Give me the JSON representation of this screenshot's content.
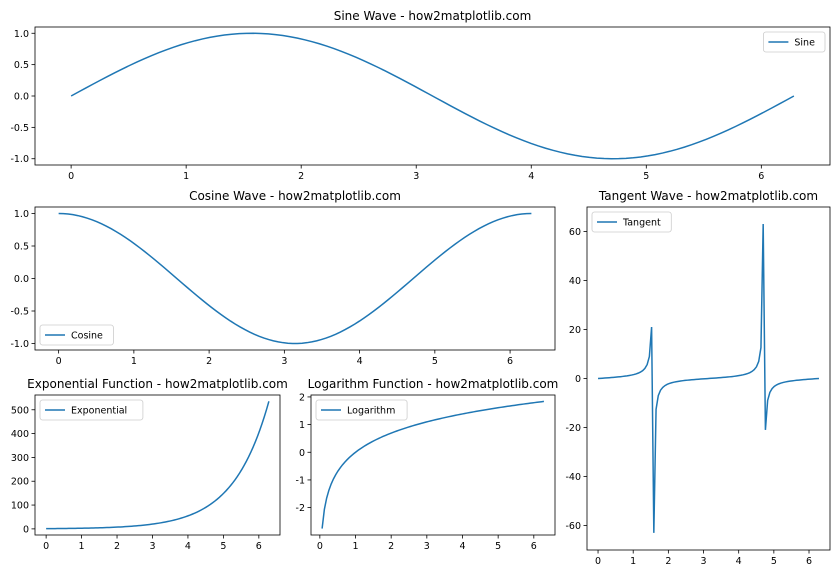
{
  "figure": {
    "line_color": "#1f77b4"
  },
  "chart_data": [
    {
      "id": "sine",
      "type": "line",
      "title": "Sine Wave - how2matplotlib.com",
      "series": [
        {
          "name": "Sine",
          "function": "sin",
          "x_start": 0,
          "x_stop": 6.2832,
          "num": 100
        }
      ],
      "xlim": [
        -0.314,
        6.597
      ],
      "ylim": [
        -1.1,
        1.1
      ],
      "xticks": [
        0,
        1,
        2,
        3,
        4,
        5,
        6
      ],
      "xtick_labels": [
        "0",
        "1",
        "2",
        "3",
        "4",
        "5",
        "6"
      ],
      "yticks": [
        -1,
        -0.5,
        0,
        0.5,
        1
      ],
      "ytick_labels": [
        "-1.0",
        "-0.5",
        "0.0",
        "0.5",
        "1.0"
      ],
      "legend": "upper-right",
      "grid": false
    },
    {
      "id": "cosine",
      "type": "line",
      "title": "Cosine Wave - how2matplotlib.com",
      "series": [
        {
          "name": "Cosine",
          "function": "cos",
          "x_start": 0,
          "x_stop": 6.2832,
          "num": 100
        }
      ],
      "xlim": [
        -0.314,
        6.597
      ],
      "ylim": [
        -1.1,
        1.1
      ],
      "xticks": [
        0,
        1,
        2,
        3,
        4,
        5,
        6
      ],
      "xtick_labels": [
        "0",
        "1",
        "2",
        "3",
        "4",
        "5",
        "6"
      ],
      "yticks": [
        -1,
        -0.5,
        0,
        0.5,
        1
      ],
      "ytick_labels": [
        "-1.0",
        "-0.5",
        "0.0",
        "0.5",
        "1.0"
      ],
      "legend": "lower-left",
      "grid": false
    },
    {
      "id": "tangent",
      "type": "line",
      "title": "Tangent Wave - how2matplotlib.com",
      "series": [
        {
          "name": "Tangent",
          "function": "tan",
          "x_start": 0,
          "x_stop": 6.2832,
          "num": 100,
          "peaks": [
            21.0,
            -63.0,
            63.0,
            -21.0
          ]
        }
      ],
      "xlim": [
        -0.314,
        6.597
      ],
      "ylim": [
        -70,
        70
      ],
      "xticks": [
        0,
        1,
        2,
        3,
        4,
        5,
        6
      ],
      "xtick_labels": [
        "0",
        "1",
        "2",
        "3",
        "4",
        "5",
        "6"
      ],
      "yticks": [
        -60,
        -40,
        -20,
        0,
        20,
        40,
        60
      ],
      "ytick_labels": [
        "-60",
        "-40",
        "-20",
        "0",
        "20",
        "40",
        "60"
      ],
      "legend": "upper-left",
      "grid": false
    },
    {
      "id": "exponential",
      "type": "line",
      "title": "Exponential Function - how2matplotlib.com",
      "series": [
        {
          "name": "Exponential",
          "function": "exp",
          "x_start": 0,
          "x_stop": 6.2832,
          "num": 100,
          "y_max": 535.5
        }
      ],
      "xlim": [
        -0.314,
        6.597
      ],
      "ylim": [
        -25.7,
        562
      ],
      "xticks": [
        0,
        1,
        2,
        3,
        4,
        5,
        6
      ],
      "xtick_labels": [
        "0",
        "1",
        "2",
        "3",
        "4",
        "5",
        "6"
      ],
      "yticks": [
        0,
        100,
        200,
        300,
        400,
        500
      ],
      "ytick_labels": [
        "0",
        "100",
        "200",
        "300",
        "400",
        "500"
      ],
      "legend": "upper-left",
      "grid": false
    },
    {
      "id": "logarithm",
      "type": "line",
      "title": "Logarithm Function - how2matplotlib.com",
      "series": [
        {
          "name": "Logarithm",
          "function": "log",
          "x_start": 0.0635,
          "x_stop": 6.2832,
          "num": 99
        }
      ],
      "xlim": [
        -0.248,
        6.594
      ],
      "ylim": [
        -2.99,
        2.07
      ],
      "xticks": [
        0,
        1,
        2,
        3,
        4,
        5,
        6
      ],
      "xtick_labels": [
        "0",
        "1",
        "2",
        "3",
        "4",
        "5",
        "6"
      ],
      "yticks": [
        -2,
        -1,
        0,
        1,
        2
      ],
      "ytick_labels": [
        "-2",
        "-1",
        "0",
        "1",
        "2"
      ],
      "legend": "upper-left",
      "grid": false
    }
  ]
}
